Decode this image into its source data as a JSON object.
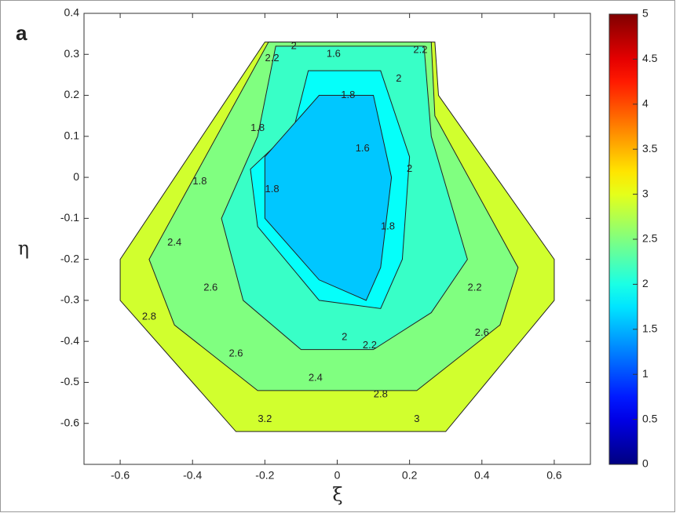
{
  "chart_data": {
    "type": "contour",
    "panel_label": "a",
    "xlabel": "ξ",
    "ylabel": "η",
    "xlim": [
      -0.7,
      0.7
    ],
    "ylim": [
      -0.7,
      0.4
    ],
    "xticks": [
      -0.6,
      -0.4,
      -0.2,
      0,
      0.2,
      0.4,
      0.6
    ],
    "yticks": [
      -0.6,
      -0.5,
      -0.4,
      -0.3,
      -0.2,
      -0.1,
      0,
      0.1,
      0.2,
      0.3,
      0.4
    ],
    "colormap": "jet",
    "clim": [
      0,
      5
    ],
    "cticks": [
      0,
      0.5,
      1,
      1.5,
      2,
      2.5,
      3,
      3.5,
      4,
      4.5,
      5
    ],
    "regions": [
      {
        "level": 2.9,
        "xi": [
          -0.2,
          0.27,
          0.28,
          0.6,
          0.6,
          0.3,
          -0.28,
          -0.6,
          -0.6
        ],
        "eta": [
          0.33,
          0.33,
          0.2,
          -0.2,
          -0.3,
          -0.62,
          -0.62,
          -0.3,
          -0.2
        ]
      },
      {
        "level": 2.5,
        "xi": [
          -0.19,
          0.26,
          0.27,
          0.5,
          0.45,
          0.22,
          -0.22,
          -0.45,
          -0.52
        ],
        "eta": [
          0.33,
          0.33,
          0.15,
          -0.22,
          -0.36,
          -0.52,
          -0.52,
          -0.36,
          -0.2
        ]
      },
      {
        "level": 2.15,
        "xi": [
          -0.17,
          0.24,
          0.26,
          0.36,
          0.26,
          0.1,
          -0.1,
          -0.26,
          -0.32,
          -0.22
        ],
        "eta": [
          0.32,
          0.32,
          0.1,
          -0.2,
          -0.33,
          -0.42,
          -0.42,
          -0.3,
          -0.1,
          0.1
        ]
      },
      {
        "level": 1.9,
        "xi": [
          -0.08,
          0.12,
          0.2,
          0.18,
          0.12,
          -0.05,
          -0.22,
          -0.24,
          -0.12
        ],
        "eta": [
          0.26,
          0.26,
          0.05,
          -0.2,
          -0.32,
          -0.3,
          -0.12,
          0.02,
          0.12
        ]
      },
      {
        "level": 1.6,
        "xi": [
          -0.05,
          0.1,
          0.15,
          0.12,
          0.08,
          -0.05,
          -0.2,
          -0.2
        ],
        "eta": [
          0.2,
          0.2,
          0,
          -0.22,
          -0.3,
          -0.25,
          -0.1,
          0.05
        ]
      }
    ],
    "contour_labels": [
      {
        "x": -0.12,
        "y": 0.32,
        "value": 2
      },
      {
        "x": -0.01,
        "y": 0.3,
        "value": 1.6
      },
      {
        "x": 0.23,
        "y": 0.31,
        "value": 2.2
      },
      {
        "x": -0.18,
        "y": 0.29,
        "value": 2.2
      },
      {
        "x": 0.03,
        "y": 0.2,
        "value": 1.8
      },
      {
        "x": 0.17,
        "y": 0.24,
        "value": 2
      },
      {
        "x": -0.22,
        "y": 0.12,
        "value": 1.8
      },
      {
        "x": 0.07,
        "y": 0.07,
        "value": 1.6
      },
      {
        "x": -0.38,
        "y": -0.01,
        "value": 1.8
      },
      {
        "x": -0.18,
        "y": -0.03,
        "value": 1.8
      },
      {
        "x": 0.14,
        "y": -0.12,
        "value": 1.8
      },
      {
        "x": 0.2,
        "y": 0.02,
        "value": 2
      },
      {
        "x": -0.45,
        "y": -0.16,
        "value": 2.4
      },
      {
        "x": -0.35,
        "y": -0.27,
        "value": 2.6
      },
      {
        "x": 0.38,
        "y": -0.27,
        "value": 2.2
      },
      {
        "x": 0.4,
        "y": -0.38,
        "value": 2.6
      },
      {
        "x": -0.28,
        "y": -0.43,
        "value": 2.6
      },
      {
        "x": 0.09,
        "y": -0.41,
        "value": 2.2
      },
      {
        "x": -0.06,
        "y": -0.49,
        "value": 2.4
      },
      {
        "x": 0.12,
        "y": -0.53,
        "value": 2.8
      },
      {
        "x": 0.22,
        "y": -0.59,
        "value": 3
      },
      {
        "x": -0.2,
        "y": -0.59,
        "value": 3.2
      },
      {
        "x": 0.02,
        "y": -0.39,
        "value": 2
      },
      {
        "x": -0.52,
        "y": -0.34,
        "value": 2.8
      }
    ]
  }
}
